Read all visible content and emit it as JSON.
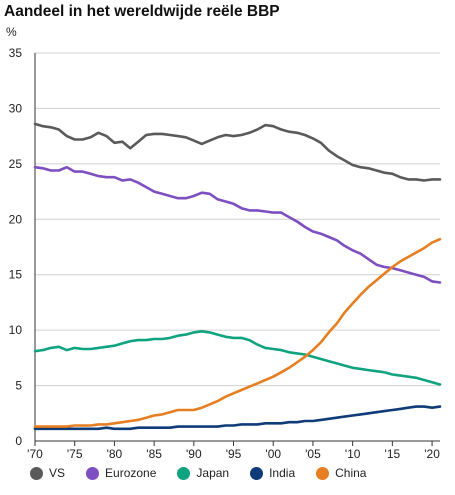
{
  "chart_data": {
    "type": "line",
    "title": "Aandeel in het wereldwijde reële BBP",
    "ylabel": "%",
    "xlabel": "",
    "ylim": [
      0,
      35
    ],
    "xlim": [
      1970,
      2021
    ],
    "yticks": [
      "0",
      "5",
      "10",
      "15",
      "20",
      "25",
      "30",
      "35"
    ],
    "xticks": [
      {
        "label": "'70",
        "value": 1970
      },
      {
        "label": "'75",
        "value": 1975
      },
      {
        "label": "'80",
        "value": 1980
      },
      {
        "label": "'85",
        "value": 1985
      },
      {
        "label": "'90",
        "value": 1990
      },
      {
        "label": "'95",
        "value": 1995
      },
      {
        "label": "'00",
        "value": 2000
      },
      {
        "label": "'05",
        "value": 2005
      },
      {
        "label": "'10",
        "value": 2010
      },
      {
        "label": "'15",
        "value": 2015
      },
      {
        "label": "'20",
        "value": 2020
      }
    ],
    "grid": "horizontal",
    "legend_position": "bottom",
    "x": [
      1970,
      1971,
      1972,
      1973,
      1974,
      1975,
      1976,
      1977,
      1978,
      1979,
      1980,
      1981,
      1982,
      1983,
      1984,
      1985,
      1986,
      1987,
      1988,
      1989,
      1990,
      1991,
      1992,
      1993,
      1994,
      1995,
      1996,
      1997,
      1998,
      1999,
      2000,
      2001,
      2002,
      2003,
      2004,
      2005,
      2006,
      2007,
      2008,
      2009,
      2010,
      2011,
      2012,
      2013,
      2014,
      2015,
      2016,
      2017,
      2018,
      2019,
      2020,
      2021
    ],
    "series": [
      {
        "name": "VS",
        "color": "#5a5a5a",
        "values": [
          28.6,
          28.4,
          28.3,
          28.1,
          27.5,
          27.2,
          27.2,
          27.4,
          27.8,
          27.5,
          26.9,
          27.0,
          26.4,
          27.0,
          27.6,
          27.7,
          27.7,
          27.6,
          27.5,
          27.4,
          27.1,
          26.8,
          27.1,
          27.4,
          27.6,
          27.5,
          27.6,
          27.8,
          28.1,
          28.5,
          28.4,
          28.1,
          27.9,
          27.8,
          27.6,
          27.3,
          26.9,
          26.2,
          25.7,
          25.3,
          24.9,
          24.7,
          24.6,
          24.4,
          24.2,
          24.1,
          23.8,
          23.6,
          23.6,
          23.5,
          23.6,
          23.6
        ]
      },
      {
        "name": "Eurozone",
        "color": "#7d4fc1",
        "values": [
          24.7,
          24.6,
          24.4,
          24.4,
          24.7,
          24.3,
          24.3,
          24.1,
          23.9,
          23.8,
          23.8,
          23.5,
          23.6,
          23.3,
          22.9,
          22.5,
          22.3,
          22.1,
          21.9,
          21.9,
          22.1,
          22.4,
          22.3,
          21.8,
          21.6,
          21.4,
          21.0,
          20.8,
          20.8,
          20.7,
          20.6,
          20.6,
          20.2,
          19.8,
          19.3,
          18.9,
          18.7,
          18.4,
          18.1,
          17.6,
          17.2,
          16.9,
          16.4,
          15.9,
          15.7,
          15.6,
          15.4,
          15.2,
          15.0,
          14.8,
          14.4,
          14.3
        ]
      },
      {
        "name": "Japan",
        "color": "#10a37f",
        "values": [
          8.1,
          8.2,
          8.4,
          8.5,
          8.2,
          8.4,
          8.3,
          8.3,
          8.4,
          8.5,
          8.6,
          8.8,
          9.0,
          9.1,
          9.1,
          9.2,
          9.2,
          9.3,
          9.5,
          9.6,
          9.8,
          9.9,
          9.8,
          9.6,
          9.4,
          9.3,
          9.3,
          9.1,
          8.7,
          8.4,
          8.3,
          8.2,
          8.0,
          7.9,
          7.8,
          7.6,
          7.4,
          7.2,
          7.0,
          6.8,
          6.6,
          6.5,
          6.4,
          6.3,
          6.2,
          6.0,
          5.9,
          5.8,
          5.7,
          5.5,
          5.3,
          5.1
        ]
      },
      {
        "name": "India",
        "color": "#0f3b78",
        "values": [
          1.1,
          1.1,
          1.1,
          1.1,
          1.1,
          1.1,
          1.1,
          1.1,
          1.1,
          1.2,
          1.1,
          1.1,
          1.1,
          1.2,
          1.2,
          1.2,
          1.2,
          1.2,
          1.3,
          1.3,
          1.3,
          1.3,
          1.3,
          1.3,
          1.4,
          1.4,
          1.5,
          1.5,
          1.5,
          1.6,
          1.6,
          1.6,
          1.7,
          1.7,
          1.8,
          1.8,
          1.9,
          2.0,
          2.1,
          2.2,
          2.3,
          2.4,
          2.5,
          2.6,
          2.7,
          2.8,
          2.9,
          3.0,
          3.1,
          3.1,
          3.0,
          3.1
        ]
      },
      {
        "name": "China",
        "color": "#e67e22",
        "values": [
          1.3,
          1.3,
          1.3,
          1.3,
          1.3,
          1.4,
          1.4,
          1.4,
          1.5,
          1.5,
          1.6,
          1.7,
          1.8,
          1.9,
          2.1,
          2.3,
          2.4,
          2.6,
          2.8,
          2.8,
          2.8,
          3.0,
          3.3,
          3.6,
          4.0,
          4.3,
          4.6,
          4.9,
          5.2,
          5.5,
          5.8,
          6.2,
          6.6,
          7.1,
          7.6,
          8.2,
          8.9,
          9.8,
          10.6,
          11.6,
          12.4,
          13.2,
          13.9,
          14.5,
          15.1,
          15.7,
          16.2,
          16.6,
          17.0,
          17.4,
          17.9,
          18.2
        ]
      }
    ]
  }
}
